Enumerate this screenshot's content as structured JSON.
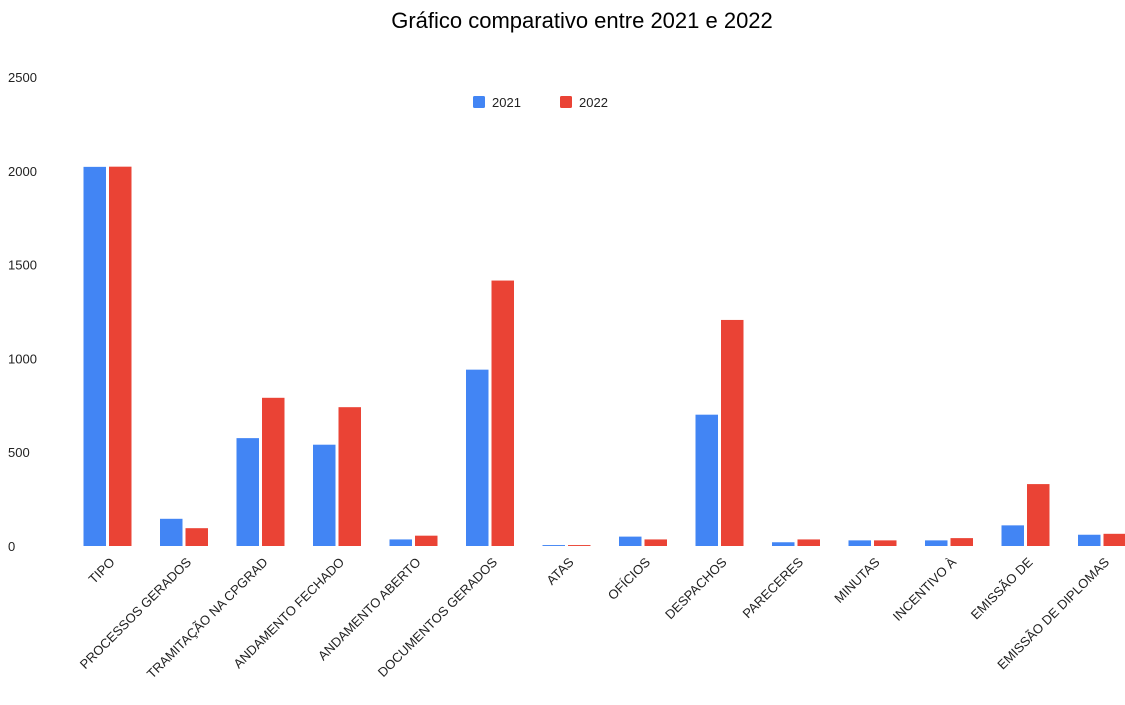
{
  "chart_data": {
    "type": "bar",
    "title": "Gráfico comparativo entre 2021 e 2022",
    "xlabel": "",
    "ylabel": "",
    "ylim": [
      0,
      2500
    ],
    "yticks": [
      0,
      500,
      1000,
      1500,
      2000,
      2500
    ],
    "grid": false,
    "legend_position": "top-center",
    "categories": [
      "TIPO",
      "PROCESSOS GERADOS",
      "TRAMITAÇÃO NA CPGRAD",
      "ANDAMENTO FECHADO",
      "ANDAMENTO ABERTO",
      "DOCUMENTOS GERADOS",
      "ATAS",
      "OFÍCIOS",
      "DESPACHOS",
      "PARECERES",
      "MINUTAS",
      "INCENTIVO À",
      "EMISSÃO DE",
      "EMISSÃO DE DIPLOMAS"
    ],
    "series": [
      {
        "name": "2021",
        "color": "#4285f4",
        "values": [
          2021,
          145,
          575,
          540,
          35,
          940,
          5,
          50,
          700,
          20,
          30,
          30,
          110,
          60
        ]
      },
      {
        "name": "2022",
        "color": "#ea4335",
        "values": [
          2022,
          95,
          790,
          740,
          55,
          1415,
          5,
          35,
          1205,
          35,
          30,
          42,
          330,
          65
        ]
      }
    ]
  }
}
